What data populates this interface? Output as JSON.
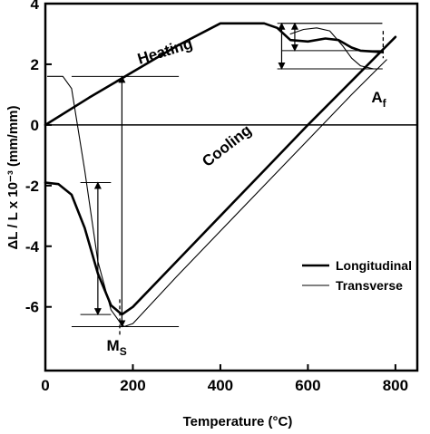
{
  "chart_data": {
    "type": "line",
    "title": "",
    "xlabel": "Temperature (°C)",
    "ylabel": "ΔL / L x 10⁻³ (mm/mm)",
    "xlim": [
      0,
      850
    ],
    "ylim": [
      -8.1,
      4
    ],
    "xticks": [
      {
        "value": 0,
        "label": "0"
      },
      {
        "value": 200,
        "label": "200"
      },
      {
        "value": 400,
        "label": "400"
      },
      {
        "value": 600,
        "label": "600"
      },
      {
        "value": 800,
        "label": "800"
      }
    ],
    "yticks": [
      {
        "value": 4,
        "label": "4"
      },
      {
        "value": 2,
        "label": "2"
      },
      {
        "value": 0,
        "label": "0"
      },
      {
        "value": -2,
        "label": "-2"
      },
      {
        "value": -4,
        "label": "-4"
      },
      {
        "value": -6,
        "label": "-6"
      }
    ],
    "zero_line": true,
    "grid": false,
    "legend_position": "bottom-right",
    "series": [
      {
        "name": "Longitudinal",
        "style": "thick",
        "segments": [
          [
            [
              0,
              0
            ],
            [
              100,
              0.9
            ],
            [
              200,
              1.75
            ],
            [
              300,
              2.6
            ],
            [
              400,
              3.35
            ],
            [
              450,
              3.35
            ],
            [
              500,
              3.35
            ],
            [
              530,
              3.2
            ],
            [
              560,
              2.8
            ],
            [
              600,
              2.75
            ],
            [
              640,
              2.85
            ],
            [
              670,
              2.8
            ],
            [
              700,
              2.55
            ],
            [
              720,
              2.45
            ],
            [
              770,
              2.4
            ]
          ],
          [
            [
              0,
              -1.9
            ],
            [
              30,
              -1.95
            ],
            [
              60,
              -2.3
            ],
            [
              90,
              -3.4
            ],
            [
              120,
              -4.9
            ],
            [
              150,
              -5.95
            ],
            [
              175,
              -6.25
            ],
            [
              200,
              -6.0
            ],
            [
              300,
              -4.5
            ],
            [
              400,
              -3.0
            ],
            [
              500,
              -1.5
            ],
            [
              600,
              0
            ],
            [
              700,
              1.45
            ],
            [
              800,
              2.9
            ]
          ]
        ]
      },
      {
        "name": "Transverse",
        "style": "thin",
        "segments": [
          [
            [
              560,
              3.0
            ],
            [
              590,
              3.15
            ],
            [
              620,
              3.2
            ],
            [
              650,
              3.1
            ],
            [
              680,
              2.6
            ],
            [
              700,
              2.2
            ],
            [
              720,
              1.95
            ],
            [
              750,
              1.85
            ],
            [
              770,
              1.85
            ]
          ],
          [
            [
              5,
              1.6
            ],
            [
              40,
              1.6
            ],
            [
              60,
              1.2
            ],
            [
              90,
              -1.5
            ],
            [
              120,
              -4.5
            ],
            [
              150,
              -6.1
            ],
            [
              170,
              -6.5
            ],
            [
              180,
              -6.65
            ],
            [
              200,
              -6.55
            ],
            [
              300,
              -5.0
            ],
            [
              400,
              -3.5
            ],
            [
              500,
              -2.0
            ],
            [
              600,
              -0.5
            ],
            [
              700,
              1.0
            ],
            [
              780,
              2.15
            ]
          ]
        ]
      }
    ],
    "measurements": [
      {
        "x": 120,
        "y1": -1.9,
        "y2": -6.25,
        "h_from": 80,
        "h_to": 150
      },
      {
        "x": 175,
        "y1": 1.6,
        "y2": -6.65,
        "h_from": 60,
        "h_to": 305
      },
      {
        "x": 570,
        "y1": 3.35,
        "y2": 2.45,
        "h_from": 540,
        "h_to": 770
      },
      {
        "x": 540,
        "y1": 3.35,
        "y2": 1.85,
        "h_from": 530,
        "h_to": 770
      }
    ],
    "markers": [
      {
        "x": 170,
        "y_from": -5.75,
        "y_to": -6.95
      },
      {
        "x": 772,
        "y_from": 3.1,
        "y_to": 2.2
      }
    ],
    "annotations": [
      {
        "text": "Heating",
        "x": 215,
        "y": 2.0,
        "rotate": -17
      },
      {
        "text": "Cooling",
        "x": 370,
        "y": -1.4,
        "rotate": -38
      },
      {
        "text": "M",
        "sub": "S",
        "x": 140,
        "y": -7.45
      },
      {
        "text": "A",
        "sub": "f",
        "x": 745,
        "y": 0.75
      }
    ],
    "legend": [
      {
        "label": "Longitudinal",
        "style": "thick"
      },
      {
        "label": "Transverse",
        "style": "thin"
      }
    ]
  }
}
